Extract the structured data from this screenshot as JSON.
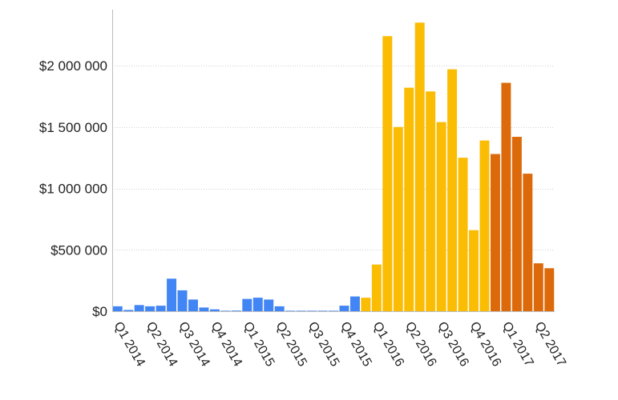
{
  "chart_data": {
    "type": "bar",
    "title": "",
    "xlabel": "",
    "ylabel": "",
    "ylim": [
      0,
      2400000
    ],
    "y_ticks": [
      {
        "value": 0,
        "label": "$0"
      },
      {
        "value": 500000,
        "label": "$500 000"
      },
      {
        "value": 1000000,
        "label": "$1 000 000"
      },
      {
        "value": 1500000,
        "label": "$1 500 000"
      },
      {
        "value": 2000000,
        "label": "$2 000 000"
      }
    ],
    "x_ticks": [
      {
        "index": 0,
        "label": "Q1 2014"
      },
      {
        "index": 3,
        "label": "Q2 2014"
      },
      {
        "index": 6,
        "label": "Q3 2014"
      },
      {
        "index": 9,
        "label": "Q4 2014"
      },
      {
        "index": 12,
        "label": "Q1 2015"
      },
      {
        "index": 15,
        "label": "Q2 2015"
      },
      {
        "index": 18,
        "label": "Q3 2015"
      },
      {
        "index": 21,
        "label": "Q4 2015"
      },
      {
        "index": 24,
        "label": "Q1 2016"
      },
      {
        "index": 27,
        "label": "Q2 2016"
      },
      {
        "index": 30,
        "label": "Q3 2016"
      },
      {
        "index": 33,
        "label": "Q4 2016"
      },
      {
        "index": 36,
        "label": "Q1 2017"
      },
      {
        "index": 39,
        "label": "Q2 2017"
      }
    ],
    "grid": true,
    "colors": {
      "blue": "#4285f4",
      "yellow": "#fbbc04",
      "orange": "#dc6a0b"
    },
    "bars": [
      {
        "value": 40000,
        "color": "blue"
      },
      {
        "value": 10000,
        "color": "blue"
      },
      {
        "value": 50000,
        "color": "blue"
      },
      {
        "value": 40000,
        "color": "blue"
      },
      {
        "value": 45000,
        "color": "blue"
      },
      {
        "value": 265000,
        "color": "blue"
      },
      {
        "value": 170000,
        "color": "blue"
      },
      {
        "value": 95000,
        "color": "blue"
      },
      {
        "value": 30000,
        "color": "blue"
      },
      {
        "value": 15000,
        "color": "blue"
      },
      {
        "value": 3000,
        "color": "blue"
      },
      {
        "value": 5000,
        "color": "blue"
      },
      {
        "value": 100000,
        "color": "blue"
      },
      {
        "value": 110000,
        "color": "blue"
      },
      {
        "value": 95000,
        "color": "blue"
      },
      {
        "value": 40000,
        "color": "blue"
      },
      {
        "value": 2000,
        "color": "blue"
      },
      {
        "value": 1000,
        "color": "blue"
      },
      {
        "value": 1000,
        "color": "blue"
      },
      {
        "value": 1000,
        "color": "blue"
      },
      {
        "value": 2000,
        "color": "blue"
      },
      {
        "value": 45000,
        "color": "blue"
      },
      {
        "value": 120000,
        "color": "blue"
      },
      {
        "value": 110000,
        "color": "yellow"
      },
      {
        "value": 380000,
        "color": "yellow"
      },
      {
        "value": 2240000,
        "color": "yellow"
      },
      {
        "value": 1500000,
        "color": "yellow"
      },
      {
        "value": 1820000,
        "color": "yellow"
      },
      {
        "value": 2350000,
        "color": "yellow"
      },
      {
        "value": 1790000,
        "color": "yellow"
      },
      {
        "value": 1540000,
        "color": "yellow"
      },
      {
        "value": 1970000,
        "color": "yellow"
      },
      {
        "value": 1250000,
        "color": "yellow"
      },
      {
        "value": 660000,
        "color": "yellow"
      },
      {
        "value": 1390000,
        "color": "yellow"
      },
      {
        "value": 1280000,
        "color": "orange"
      },
      {
        "value": 1860000,
        "color": "orange"
      },
      {
        "value": 1420000,
        "color": "orange"
      },
      {
        "value": 1120000,
        "color": "orange"
      },
      {
        "value": 390000,
        "color": "orange"
      },
      {
        "value": 350000,
        "color": "orange"
      }
    ]
  }
}
